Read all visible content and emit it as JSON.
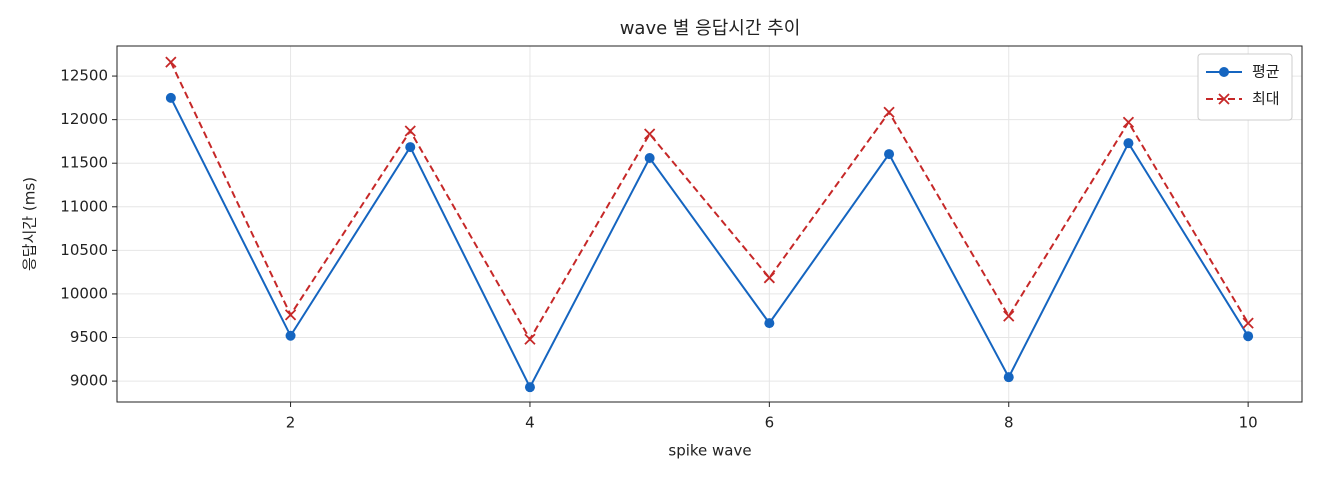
{
  "chart_data": {
    "type": "line",
    "title": "wave 별 응답시간 추이",
    "xlabel": "spike wave",
    "ylabel": "응답시간 (ms)",
    "x": [
      1,
      2,
      3,
      4,
      5,
      6,
      7,
      8,
      9,
      10
    ],
    "series": [
      {
        "name": "평균",
        "color": "#1565c0",
        "marker": "o",
        "linestyle": "solid",
        "values": [
          12250,
          9520,
          11685,
          8930,
          11560,
          9665,
          11605,
          9045,
          11730,
          9515
        ]
      },
      {
        "name": "최대",
        "color": "#c62828",
        "marker": "x",
        "linestyle": "dashed",
        "values": [
          12660,
          9760,
          11870,
          9480,
          11835,
          10185,
          12085,
          9745,
          11970,
          9665
        ]
      }
    ],
    "xlim": [
      0.55,
      10.45
    ],
    "xticks": [
      2,
      4,
      6,
      8,
      10
    ],
    "ylim": [
      8760,
      12845
    ],
    "yticks": [
      9000,
      9500,
      10000,
      10500,
      11000,
      11500,
      12000,
      12500
    ],
    "grid": true,
    "legend": "upper right"
  }
}
